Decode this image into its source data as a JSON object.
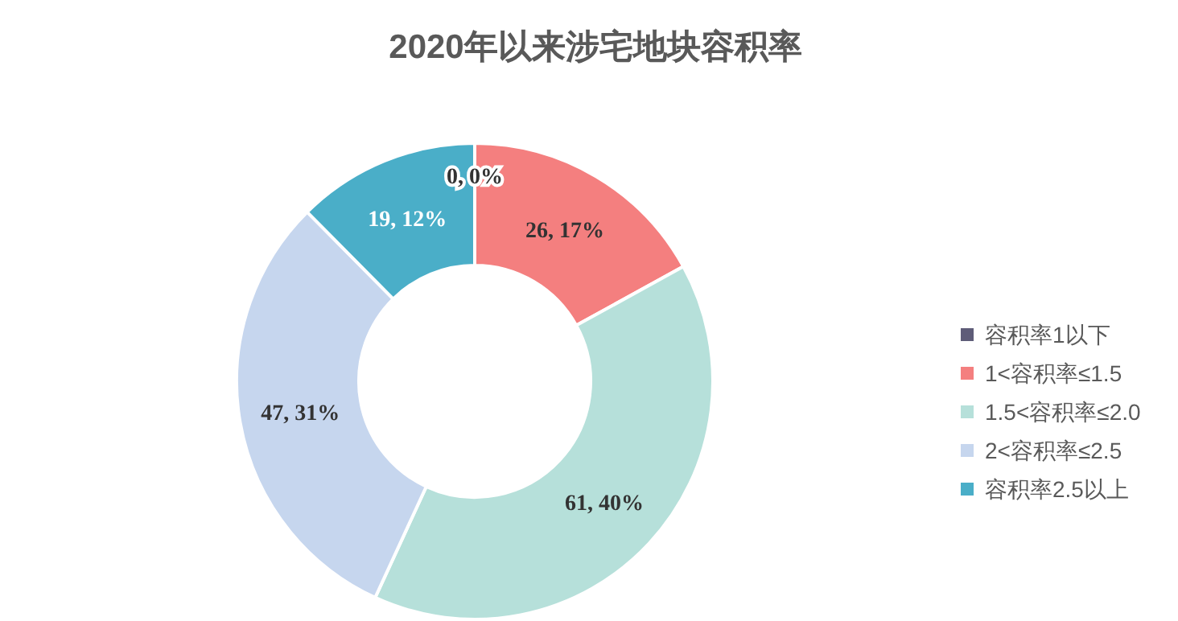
{
  "chart_data": {
    "type": "donut",
    "title": "2020年以来涉宅地块容积率",
    "categories": [
      "容积率1以下",
      "1<容积率≤1.5",
      "1.5<容积率≤2.0",
      "2<容积率≤2.5",
      "容积率2.5以上"
    ],
    "values": [
      0,
      26,
      61,
      47,
      19
    ],
    "value_labels": [
      "0, 0%",
      "26, 17%",
      "61, 40%",
      "47, 31%",
      "19, 12%"
    ],
    "colors": [
      "#5e5c78",
      "#f47f7f",
      "#b6e0da",
      "#c6d6ee",
      "#4aaec8"
    ],
    "legend": "right"
  }
}
